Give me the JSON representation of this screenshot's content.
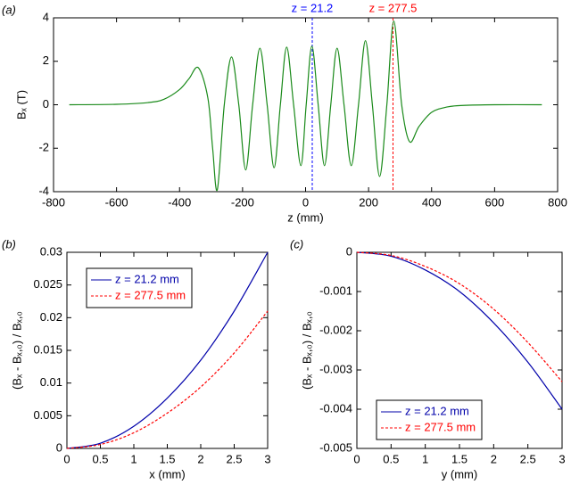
{
  "chart_data": [
    {
      "type": "line",
      "panel_label": "(a)",
      "xlabel": "z (mm)",
      "ylabel": "Bₓ (T)",
      "x": [
        -750,
        -600,
        -500,
        -450,
        -400,
        -370,
        -340,
        -310,
        -295,
        -280,
        -258,
        -235,
        -212,
        -190,
        -168,
        -145,
        -122,
        -100,
        -80,
        -60,
        -38,
        -15,
        2,
        20,
        40,
        60,
        80,
        100,
        122,
        145,
        168,
        190,
        212,
        235,
        258,
        280,
        305,
        330,
        360,
        400,
        450,
        500,
        600,
        750
      ],
      "series": [
        {
          "name": "Bx",
          "color": "#1a8a1a",
          "dash": false,
          "values": [
            0,
            0.02,
            0.1,
            0.25,
            0.7,
            1.2,
            1.7,
            0.3,
            -2.0,
            -3.9,
            0,
            2.2,
            0,
            -3.0,
            0,
            2.6,
            0,
            -2.9,
            0,
            2.65,
            0,
            -2.8,
            0,
            2.7,
            0,
            -2.8,
            0,
            2.6,
            0,
            -2.8,
            0,
            2.95,
            0,
            -3.3,
            0,
            3.85,
            0,
            -1.7,
            -1.0,
            -0.35,
            -0.1,
            -0.03,
            0,
            0
          ]
        }
      ],
      "markers": [
        {
          "x": 21.2,
          "label": "z = 21.2",
          "color": "#0000ff"
        },
        {
          "x": 277.5,
          "label": "z = 277.5",
          "color": "#ff0000"
        }
      ],
      "xlim": [
        -800,
        800
      ],
      "xticks": [
        -800,
        -600,
        -400,
        -200,
        0,
        200,
        400,
        600,
        800
      ],
      "ylim": [
        -4,
        4
      ],
      "yticks": [
        -4,
        -2,
        0,
        2,
        4
      ],
      "grid": false
    },
    {
      "type": "line",
      "panel_label": "(b)",
      "xlabel": "x (mm)",
      "ylabel": "(Bₓ - Bₓ,₀) / Bₓ,₀",
      "x": [
        0,
        0.5,
        1,
        1.5,
        2,
        2.5,
        3
      ],
      "series": [
        {
          "name": "z = 21.2 mm",
          "color": "#0000aa",
          "dash": false,
          "values": [
            0,
            0.0008,
            0.0034,
            0.0077,
            0.0135,
            0.021,
            0.03
          ]
        },
        {
          "name": "z = 277.5 mm",
          "color": "#ff0000",
          "dash": true,
          "values": [
            0,
            0.0006,
            0.0024,
            0.0054,
            0.0094,
            0.0146,
            0.021
          ]
        }
      ],
      "legend": "upper left",
      "xlim": [
        0,
        3
      ],
      "xticks": [
        0,
        0.5,
        1,
        1.5,
        2,
        2.5,
        3
      ],
      "ylim": [
        0,
        0.03
      ],
      "yticks": [
        0,
        0.005,
        0.01,
        0.015,
        0.02,
        0.025,
        0.03
      ],
      "grid": false
    },
    {
      "type": "line",
      "panel_label": "(c)",
      "xlabel": "y (mm)",
      "ylabel": "(Bₓ - Bₓ,₀) / Bₓ,₀",
      "x": [
        0,
        0.5,
        1,
        1.5,
        2,
        2.5,
        3
      ],
      "series": [
        {
          "name": "z = 21.2 mm",
          "color": "#0000aa",
          "dash": false,
          "values": [
            0,
            -0.0001,
            -0.00045,
            -0.001,
            -0.0018,
            -0.0028,
            -0.004
          ]
        },
        {
          "name": "z = 277.5 mm",
          "color": "#ff0000",
          "dash": true,
          "values": [
            0,
            -8e-05,
            -0.00036,
            -0.0008,
            -0.00145,
            -0.0023,
            -0.0033
          ]
        }
      ],
      "legend": "lower left",
      "xlim": [
        0,
        3
      ],
      "xticks": [
        0,
        0.5,
        1,
        1.5,
        2,
        2.5,
        3
      ],
      "ylim": [
        -0.005,
        0
      ],
      "yticks": [
        -0.005,
        -0.004,
        -0.003,
        -0.002,
        -0.001,
        0
      ],
      "grid": false
    }
  ]
}
